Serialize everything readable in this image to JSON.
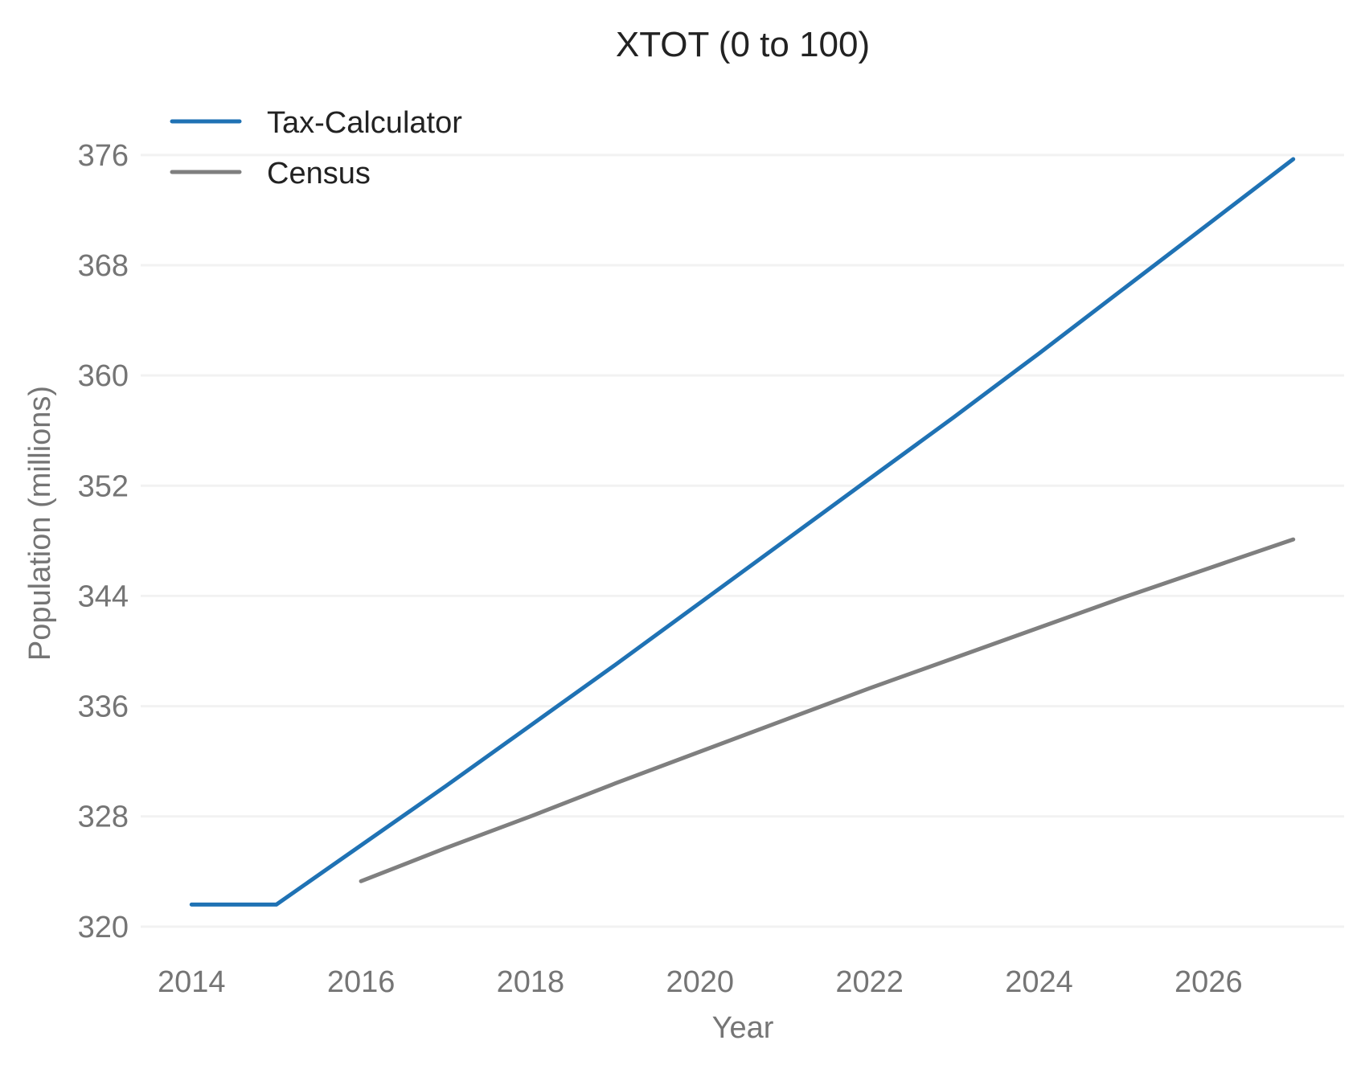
{
  "chart_data": {
    "type": "line",
    "title": "XTOT (0 to 100)",
    "xlabel": "Year",
    "ylabel": "Population (millions)",
    "xlim": [
      2013.4,
      2027.6
    ],
    "ylim": [
      319,
      378.5
    ],
    "x_ticks": [
      2014,
      2016,
      2018,
      2020,
      2022,
      2024,
      2026
    ],
    "y_ticks": [
      320,
      328,
      336,
      344,
      352,
      360,
      368,
      376
    ],
    "grid": "horizontal",
    "legend": "top-left",
    "series": [
      {
        "name": "Tax-Calculator",
        "color": "#1f72b4",
        "x": [
          2014,
          2015,
          2016,
          2017,
          2018,
          2019,
          2020,
          2021,
          2022,
          2023,
          2024,
          2025,
          2026,
          2027
        ],
        "y": [
          321.6,
          321.6,
          325.9,
          330.2,
          334.6,
          339.0,
          343.5,
          348.0,
          352.5,
          357.0,
          361.6,
          366.3,
          371.0,
          375.7
        ]
      },
      {
        "name": "Census",
        "color": "#7f7f7f",
        "x": [
          2016,
          2017,
          2018,
          2019,
          2020,
          2021,
          2022,
          2023,
          2024,
          2025,
          2026,
          2027
        ],
        "y": [
          323.3,
          325.7,
          328.0,
          330.4,
          332.7,
          335.0,
          337.3,
          339.5,
          341.7,
          343.9,
          346.0,
          348.1
        ]
      }
    ]
  }
}
